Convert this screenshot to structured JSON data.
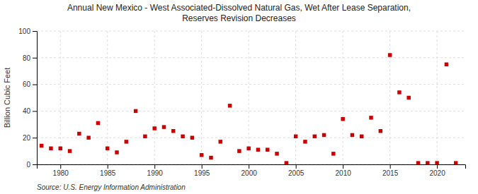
{
  "chart_data": {
    "type": "scatter",
    "title": "Annual New Mexico - West Associated-Dissolved Natural Gas, Wet After Lease Separation,\nReserves Revision Decreases",
    "ylabel": "Billion Cubic Feet",
    "source": "Source: U.S. Energy Information Administration",
    "x": [
      1978,
      1979,
      1980,
      1981,
      1982,
      1983,
      1984,
      1985,
      1986,
      1987,
      1988,
      1989,
      1990,
      1991,
      1992,
      1993,
      1994,
      1995,
      1996,
      1997,
      1998,
      1999,
      2000,
      2001,
      2002,
      2003,
      2004,
      2005,
      2006,
      2007,
      2008,
      2009,
      2010,
      2011,
      2012,
      2013,
      2014,
      2015,
      2016,
      2017,
      2018,
      2019,
      2020,
      2021,
      2022
    ],
    "values": [
      14,
      12,
      12,
      10,
      23,
      20,
      31,
      12,
      9,
      17,
      40,
      21,
      27,
      28,
      25,
      21,
      20,
      7,
      5,
      17,
      44,
      10,
      12,
      11,
      11,
      8,
      1,
      21,
      17,
      21,
      22,
      8,
      34,
      22,
      21,
      35,
      25,
      82,
      54,
      50,
      1,
      1,
      1,
      75,
      1
    ],
    "color": "#cc0000",
    "marker": "square",
    "xlim": [
      1977.5,
      2023
    ],
    "ylim": [
      0,
      100
    ],
    "xticks": [
      1980,
      1985,
      1990,
      1995,
      2000,
      2005,
      2010,
      2015,
      2020
    ],
    "yticks": [
      0,
      20,
      40,
      60,
      80,
      100
    ],
    "grid": true
  }
}
